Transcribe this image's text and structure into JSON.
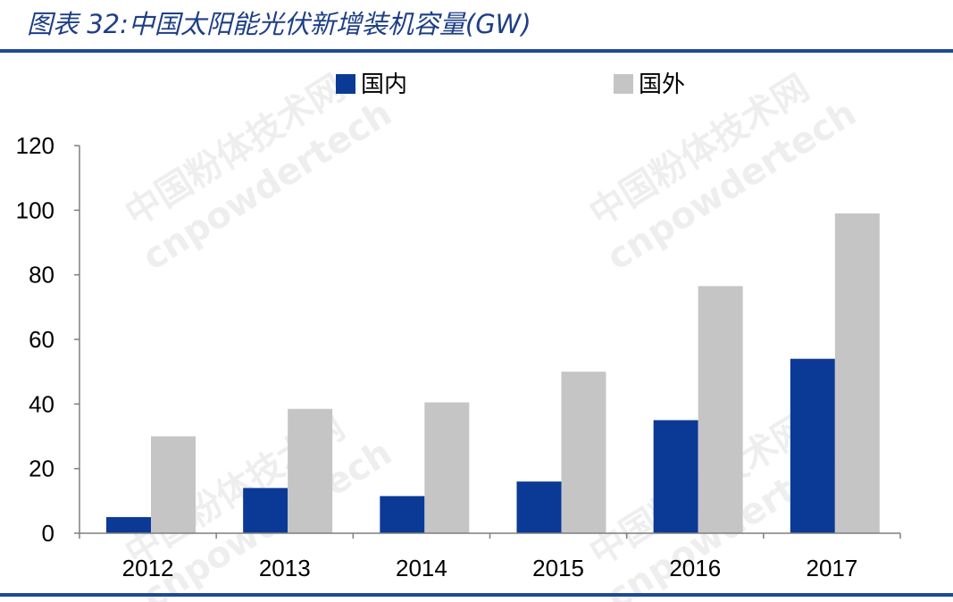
{
  "title": "图表 32:中国太阳能光伏新增装机容量(GW)",
  "watermark": {
    "line1": "中国粉体技术网",
    "line2": "cnpowdertech"
  },
  "colors": {
    "domestic": "#0b3a96",
    "overseas": "#c6c5c6",
    "title": "#1e3f86",
    "rule": "#1e4a95"
  },
  "chart_data": {
    "type": "bar",
    "categories": [
      "2012",
      "2013",
      "2014",
      "2015",
      "2016",
      "2017"
    ],
    "series": [
      {
        "name": "国内",
        "values": [
          5,
          14,
          11.5,
          16,
          35,
          54
        ]
      },
      {
        "name": "国外",
        "values": [
          30,
          38.5,
          40.5,
          50,
          76.5,
          99
        ]
      }
    ],
    "ylim": [
      0,
      120
    ],
    "yticks": [
      0,
      20,
      40,
      60,
      80,
      100,
      120
    ],
    "legend": "top",
    "grid": false
  }
}
